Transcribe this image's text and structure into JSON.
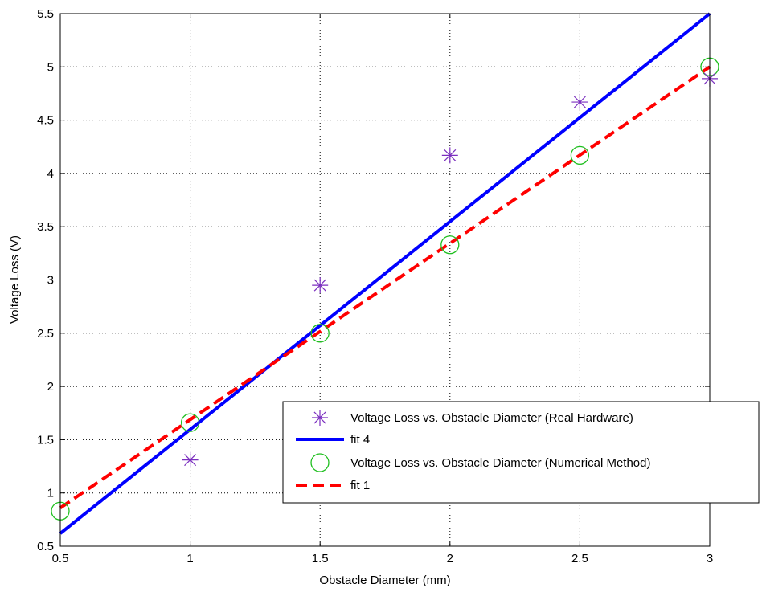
{
  "chart_data": {
    "type": "scatter",
    "title": "",
    "xlabel": "Obstacle Diameter (mm)",
    "ylabel": "Voltage Loss (V)",
    "xlim": [
      0.5,
      3
    ],
    "ylim": [
      0.5,
      5.5
    ],
    "xticks": [
      0.5,
      1,
      1.5,
      2,
      2.5,
      3
    ],
    "xtick_labels": [
      "0.5",
      "1",
      "1.5",
      "2",
      "2.5",
      "3"
    ],
    "yticks": [
      0.5,
      1,
      1.5,
      2,
      2.5,
      3,
      3.5,
      4,
      4.5,
      5,
      5.5
    ],
    "ytick_labels": [
      "0.5",
      "1",
      "1.5",
      "2",
      "2.5",
      "3",
      "3.5",
      "4",
      "4.5",
      "5",
      "5.5"
    ],
    "grid": true,
    "legend_position": "bottom-right",
    "series": [
      {
        "name": "Voltage Loss vs. Obstacle Diameter (Real Hardware)",
        "style": "star-markers",
        "color": "#7b2fbf",
        "x": [
          1,
          1.5,
          2,
          2.5,
          3
        ],
        "y": [
          1.31,
          2.95,
          4.17,
          4.67,
          4.89
        ]
      },
      {
        "name": "fit 4",
        "style": "solid-line",
        "color": "#0000ff",
        "x": [
          0.5,
          3
        ],
        "y": [
          0.62,
          5.5
        ]
      },
      {
        "name": "Voltage Loss vs. Obstacle Diameter (Numerical Method)",
        "style": "circle-markers",
        "color": "#1fbf1f",
        "x": [
          0.5,
          1,
          1.5,
          2,
          2.5,
          3
        ],
        "y": [
          0.83,
          1.66,
          2.5,
          3.33,
          4.17,
          5.0
        ]
      },
      {
        "name": "fit 1",
        "style": "dashed-line",
        "color": "#ff0000",
        "x": [
          0.5,
          3
        ],
        "y": [
          0.86,
          5.0
        ]
      }
    ]
  }
}
